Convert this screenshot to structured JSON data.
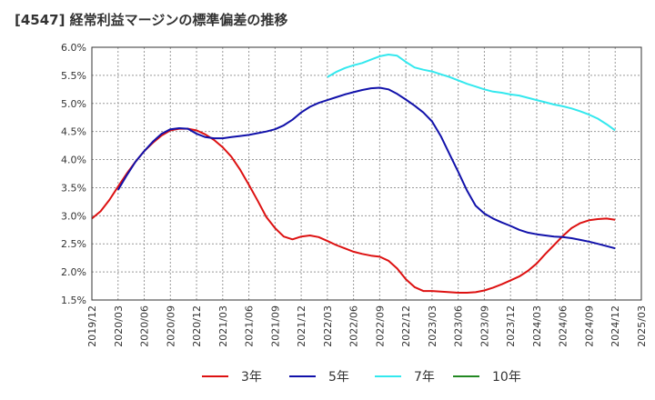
{
  "chart_data": {
    "type": "line",
    "title": "[4547]  経常利益マージンの標準偏差の推移",
    "xlabel": "",
    "ylabel": "",
    "x_ticks": [
      "2019/12",
      "2020/03",
      "2020/06",
      "2020/09",
      "2020/12",
      "2021/03",
      "2021/06",
      "2021/09",
      "2021/12",
      "2022/03",
      "2022/06",
      "2022/09",
      "2022/12",
      "2023/03",
      "2023/06",
      "2023/09",
      "2023/12",
      "2024/03",
      "2024/06",
      "2024/09",
      "2024/12",
      "2025/03"
    ],
    "y_ticks": [
      "1.5%",
      "2.0%",
      "2.5%",
      "3.0%",
      "3.5%",
      "4.0%",
      "4.5%",
      "5.0%",
      "5.5%",
      "6.0%"
    ],
    "ylim": [
      1.5,
      6.0
    ],
    "grid": true,
    "legend_position": "bottom",
    "series": [
      {
        "name": "3年",
        "color": "#dd1111",
        "x": [
          "2019/12",
          "2020/01",
          "2020/02",
          "2020/03",
          "2020/04",
          "2020/05",
          "2020/06",
          "2020/07",
          "2020/08",
          "2020/09",
          "2020/10",
          "2020/11",
          "2020/12",
          "2021/01",
          "2021/02",
          "2021/03",
          "2021/04",
          "2021/05",
          "2021/06",
          "2021/07",
          "2021/08",
          "2021/09",
          "2021/10",
          "2021/11",
          "2021/12",
          "2022/01",
          "2022/02",
          "2022/03",
          "2022/04",
          "2022/05",
          "2022/06",
          "2022/07",
          "2022/08",
          "2022/09",
          "2022/10",
          "2022/11",
          "2022/12",
          "2023/01",
          "2023/02",
          "2023/03",
          "2023/04",
          "2023/05",
          "2023/06",
          "2023/07",
          "2023/08",
          "2023/09",
          "2023/10",
          "2023/11",
          "2023/12",
          "2024/01",
          "2024/02",
          "2024/03",
          "2024/04",
          "2024/05",
          "2024/06",
          "2024/07",
          "2024/08",
          "2024/09",
          "2024/10",
          "2024/11",
          "2024/12"
        ],
        "values": [
          2.95,
          3.08,
          3.28,
          3.52,
          3.75,
          3.96,
          4.15,
          4.3,
          4.43,
          4.52,
          4.55,
          4.55,
          4.52,
          4.45,
          4.35,
          4.22,
          4.05,
          3.82,
          3.55,
          3.27,
          2.98,
          2.78,
          2.63,
          2.58,
          2.63,
          2.65,
          2.62,
          2.55,
          2.48,
          2.42,
          2.36,
          2.32,
          2.29,
          2.27,
          2.2,
          2.06,
          1.87,
          1.73,
          1.66,
          1.66,
          1.65,
          1.64,
          1.63,
          1.63,
          1.64,
          1.67,
          1.72,
          1.78,
          1.85,
          1.92,
          2.02,
          2.15,
          2.32,
          2.48,
          2.64,
          2.78,
          2.87,
          2.92,
          2.94,
          2.95,
          2.93
        ]
      },
      {
        "name": "5年",
        "color": "#1111aa",
        "x": [
          "2020/03",
          "2020/04",
          "2020/05",
          "2020/06",
          "2020/07",
          "2020/08",
          "2020/09",
          "2020/10",
          "2020/11",
          "2020/12",
          "2021/01",
          "2021/02",
          "2021/03",
          "2021/04",
          "2021/05",
          "2021/06",
          "2021/07",
          "2021/08",
          "2021/09",
          "2021/10",
          "2021/11",
          "2021/12",
          "2022/01",
          "2022/02",
          "2022/03",
          "2022/04",
          "2022/05",
          "2022/06",
          "2022/07",
          "2022/08",
          "2022/09",
          "2022/10",
          "2022/11",
          "2022/12",
          "2023/01",
          "2023/02",
          "2023/03",
          "2023/04",
          "2023/05",
          "2023/06",
          "2023/07",
          "2023/08",
          "2023/09",
          "2023/10",
          "2023/11",
          "2023/12",
          "2024/01",
          "2024/02",
          "2024/03",
          "2024/04",
          "2024/05",
          "2024/06",
          "2024/07",
          "2024/08",
          "2024/09",
          "2024/10",
          "2024/11",
          "2024/12"
        ],
        "values": [
          3.46,
          3.72,
          3.96,
          4.15,
          4.32,
          4.46,
          4.54,
          4.56,
          4.55,
          4.46,
          4.4,
          4.38,
          4.38,
          4.4,
          4.42,
          4.44,
          4.47,
          4.5,
          4.54,
          4.61,
          4.71,
          4.84,
          4.94,
          5.01,
          5.06,
          5.11,
          5.16,
          5.2,
          5.24,
          5.27,
          5.28,
          5.25,
          5.17,
          5.07,
          4.96,
          4.84,
          4.68,
          4.42,
          4.1,
          3.78,
          3.45,
          3.18,
          3.04,
          2.95,
          2.88,
          2.82,
          2.75,
          2.7,
          2.67,
          2.65,
          2.63,
          2.62,
          2.6,
          2.57,
          2.54,
          2.5,
          2.46,
          2.42
        ]
      },
      {
        "name": "7年",
        "color": "#33e8ee",
        "x": [
          "2022/03",
          "2022/04",
          "2022/05",
          "2022/06",
          "2022/07",
          "2022/08",
          "2022/09",
          "2022/10",
          "2022/11",
          "2022/12",
          "2023/01",
          "2023/02",
          "2023/03",
          "2023/04",
          "2023/05",
          "2023/06",
          "2023/07",
          "2023/08",
          "2023/09",
          "2023/10",
          "2023/11",
          "2023/12",
          "2024/01",
          "2024/02",
          "2024/03",
          "2024/04",
          "2024/05",
          "2024/06",
          "2024/07",
          "2024/08",
          "2024/09",
          "2024/10",
          "2024/11",
          "2024/12"
        ],
        "values": [
          5.47,
          5.56,
          5.63,
          5.68,
          5.72,
          5.78,
          5.84,
          5.87,
          5.85,
          5.74,
          5.64,
          5.6,
          5.57,
          5.52,
          5.47,
          5.41,
          5.35,
          5.3,
          5.25,
          5.21,
          5.19,
          5.16,
          5.14,
          5.1,
          5.06,
          5.02,
          4.98,
          4.95,
          4.91,
          4.86,
          4.8,
          4.73,
          4.63,
          4.52
        ]
      },
      {
        "name": "10年",
        "color": "#228822",
        "x": [],
        "values": []
      }
    ]
  }
}
